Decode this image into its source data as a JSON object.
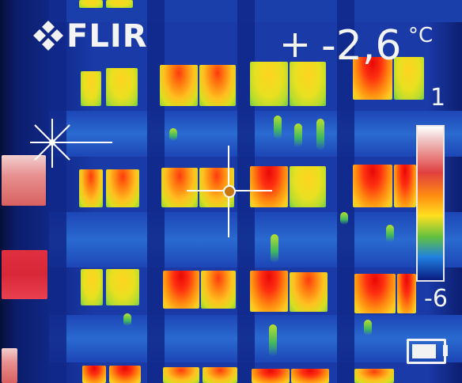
{
  "camera": {
    "brand": "FLIR",
    "spot_temperature": "-2,6",
    "unit": "°C",
    "scale_max": "1",
    "scale_min": "-6",
    "battery_icon": "battery-icon",
    "palette": [
      "#ffffff",
      "#e04040",
      "#ff8c10",
      "#ffe020",
      "#60c040",
      "#2080e0",
      "#0a1a80"
    ]
  }
}
